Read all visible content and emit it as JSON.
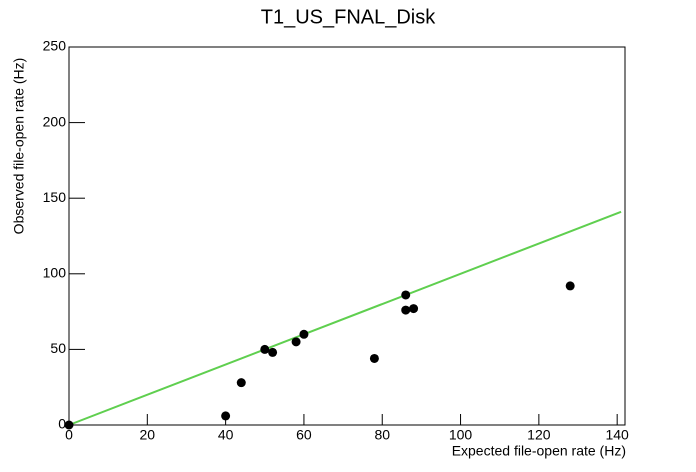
{
  "chart_data": {
    "type": "scatter",
    "title": "T1_US_FNAL_Disk",
    "xlabel": "Expected file-open rate (Hz)",
    "ylabel": "Observed file-open rate (Hz)",
    "x": [
      0,
      40,
      44,
      50,
      52,
      58,
      60,
      78,
      86,
      86,
      88,
      128
    ],
    "values": [
      0,
      6,
      28,
      50,
      48,
      55,
      60,
      44,
      86,
      76,
      77,
      92
    ],
    "color": "#000000",
    "fit": {
      "type": "line",
      "x": [
        0,
        141
      ],
      "values": [
        0,
        141
      ],
      "color": "#5fcf4f"
    },
    "xlim": [
      0,
      142
    ],
    "ylim": [
      0,
      250
    ],
    "xticks": [
      0,
      20,
      40,
      60,
      80,
      100,
      120,
      140
    ],
    "yticks": [
      0,
      50,
      100,
      150,
      200,
      250
    ]
  }
}
